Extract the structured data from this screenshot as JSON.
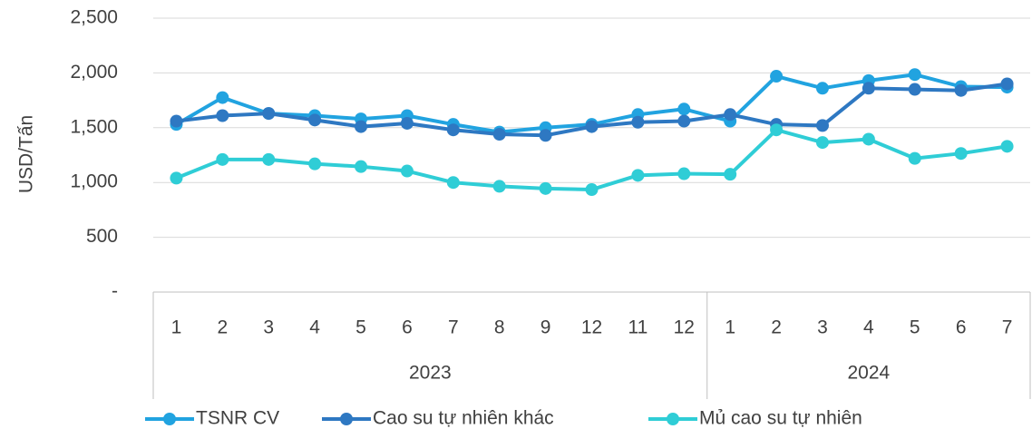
{
  "chart_data": {
    "type": "line",
    "y_label": "USD/Tấn",
    "categories": [
      "1",
      "2",
      "3",
      "4",
      "5",
      "6",
      "7",
      "8",
      "9",
      "12",
      "11",
      "12",
      "1",
      "2",
      "3",
      "4",
      "5",
      "6",
      "7"
    ],
    "category_groups": [
      {
        "label": "2023",
        "size": 12
      },
      {
        "label": "2024",
        "size": 7
      }
    ],
    "series": [
      {
        "name": "TSNR CV",
        "color": "#21a3e0",
        "values": [
          1530,
          1775,
          1630,
          1610,
          1580,
          1610,
          1530,
          1460,
          1500,
          1530,
          1620,
          1670,
          1560,
          1970,
          1860,
          1930,
          1985,
          1875,
          1870
        ]
      },
      {
        "name": "Cao su tự nhiên khác",
        "color": "#2e78c2",
        "values": [
          1560,
          1610,
          1630,
          1570,
          1510,
          1540,
          1480,
          1440,
          1430,
          1510,
          1550,
          1560,
          1620,
          1530,
          1520,
          1860,
          1850,
          1840,
          1900
        ]
      },
      {
        "name": "Mủ cao su tự nhiên",
        "color": "#2fcdd6",
        "values": [
          1040,
          1210,
          1210,
          1170,
          1145,
          1105,
          1000,
          965,
          945,
          935,
          1065,
          1080,
          1075,
          1480,
          1365,
          1395,
          1220,
          1265,
          1330
        ]
      }
    ],
    "ylim": [
      0,
      2500
    ],
    "yticks": [
      {
        "value": 0,
        "label": "-"
      },
      500,
      {
        "value": 1000,
        "label": "1,000"
      },
      {
        "value": 1500,
        "label": "1,500"
      },
      {
        "value": 2000,
        "label": "2,000"
      },
      {
        "value": 2500,
        "label": "2,500"
      }
    ],
    "grid": true,
    "legend": "bottom"
  }
}
